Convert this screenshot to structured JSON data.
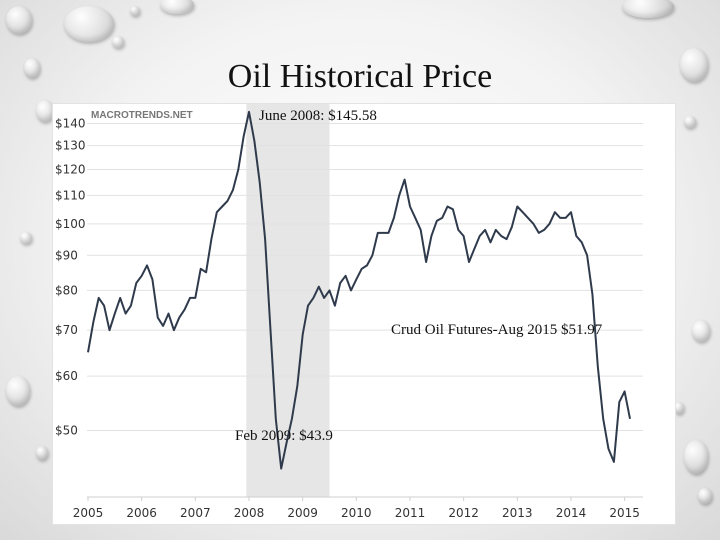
{
  "slide": {
    "title": "Oil Historical Price"
  },
  "chart_data": {
    "type": "line",
    "watermark": "MACROTRENDS.NET",
    "x_ticks": [
      "2005",
      "2006",
      "2007",
      "2008",
      "2009",
      "2010",
      "2011",
      "2012",
      "2013",
      "2014",
      "2015"
    ],
    "y_ticks": [
      "$140",
      "$130",
      "$120",
      "$110",
      "$100",
      "$90",
      "$80",
      "$70",
      "$60",
      "$50"
    ],
    "y_tick_values": [
      140,
      130,
      120,
      110,
      100,
      90,
      80,
      70,
      60,
      50
    ],
    "y_scale": "log",
    "ylim": [
      40,
      147
    ],
    "xlim": [
      2005.0,
      2015.1
    ],
    "highlight_band": [
      2007.95,
      2009.5
    ],
    "colors": {
      "line": "#2f3b4c",
      "band": "#e6e6e6",
      "grid": "#e2e2e2",
      "tick": "#333333"
    },
    "series": [
      {
        "x": [
          2005.0,
          2005.1,
          2005.2,
          2005.3,
          2005.4,
          2005.5,
          2005.6,
          2005.7,
          2005.8,
          2005.9,
          2006.0,
          2006.1,
          2006.2,
          2006.3,
          2006.4,
          2006.5,
          2006.6,
          2006.7,
          2006.8,
          2006.9,
          2007.0,
          2007.1,
          2007.2,
          2007.3,
          2007.4,
          2007.5,
          2007.6,
          2007.7,
          2007.8,
          2007.9,
          2008.0,
          2008.1,
          2008.2,
          2008.3,
          2008.4,
          2008.5,
          2008.6,
          2008.7,
          2008.8,
          2008.9,
          2009.0,
          2009.1,
          2009.2,
          2009.3,
          2009.4,
          2009.5,
          2009.6,
          2009.7,
          2009.8,
          2009.9,
          2010.0,
          2010.1,
          2010.2,
          2010.3,
          2010.4,
          2010.5,
          2010.6,
          2010.7,
          2010.8,
          2010.9,
          2011.0,
          2011.1,
          2011.2,
          2011.3,
          2011.4,
          2011.5,
          2011.6,
          2011.7,
          2011.8,
          2011.9,
          2012.0,
          2012.1,
          2012.2,
          2012.3,
          2012.4,
          2012.5,
          2012.6,
          2012.7,
          2012.8,
          2012.9,
          2013.0,
          2013.1,
          2013.2,
          2013.3,
          2013.4,
          2013.5,
          2013.6,
          2013.7,
          2013.8,
          2013.9,
          2014.0,
          2014.1,
          2014.2,
          2014.3,
          2014.4,
          2014.5,
          2014.6,
          2014.7,
          2014.8,
          2014.9,
          2015.0,
          2015.1
        ],
        "values": [
          65,
          72,
          78,
          76,
          70,
          74,
          78,
          74,
          76,
          82,
          84,
          87,
          83,
          73,
          71,
          74,
          70,
          73,
          75,
          78,
          78,
          86,
          85,
          95,
          104,
          106,
          108,
          112,
          120,
          134,
          145.58,
          132,
          115,
          95,
          70,
          52,
          44,
          48,
          52,
          58,
          69,
          76,
          78,
          81,
          78,
          80,
          76,
          82,
          84,
          80,
          83,
          86,
          87,
          90,
          97,
          97,
          97,
          102,
          110,
          116,
          106,
          102,
          98,
          88,
          96,
          101,
          102,
          106,
          105,
          98,
          96,
          88,
          92,
          96,
          98,
          94,
          98,
          96,
          95,
          99,
          106,
          104,
          102,
          100,
          97,
          98,
          100,
          104,
          102,
          102,
          104,
          96,
          94,
          90,
          79,
          62,
          52,
          47,
          45,
          55,
          57,
          52
        ]
      }
    ],
    "annotations": [
      {
        "text": "June 2008: $145.58"
      },
      {
        "text": "Crud Oil Futures-Aug 2015 $51.97"
      },
      {
        "text": "Feb 2009: $43.9"
      }
    ]
  }
}
